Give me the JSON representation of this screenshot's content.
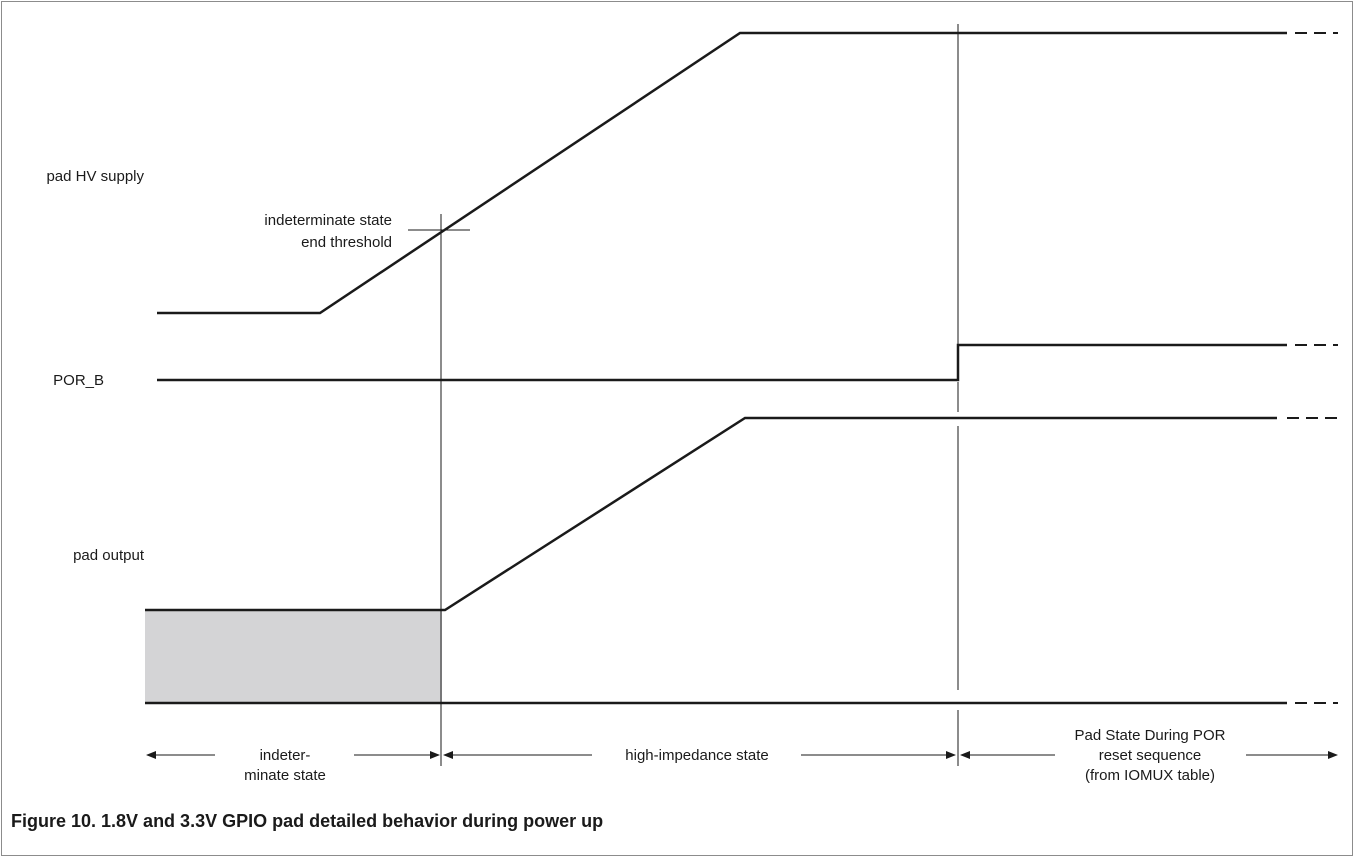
{
  "signals": {
    "pad_hv_supply": "pad HV supply",
    "por_b": "POR_B",
    "pad_output": "pad output"
  },
  "annotation": {
    "threshold_line1": "indeterminate state",
    "threshold_line2": "end threshold"
  },
  "phases": {
    "indeterminate_line1": "indeter-",
    "indeterminate_line2": "minate state",
    "high_impedance": "high-impedance state",
    "por_line1": "Pad State During POR",
    "por_line2": "reset sequence",
    "por_line3": "(from IOMUX table)"
  },
  "caption": "Figure 10.  1.8V and 3.3V GPIO pad detailed behavior during power up",
  "colors": {
    "line": "#1a1a1a",
    "indeterminate_fill": "#d4d4d6"
  }
}
